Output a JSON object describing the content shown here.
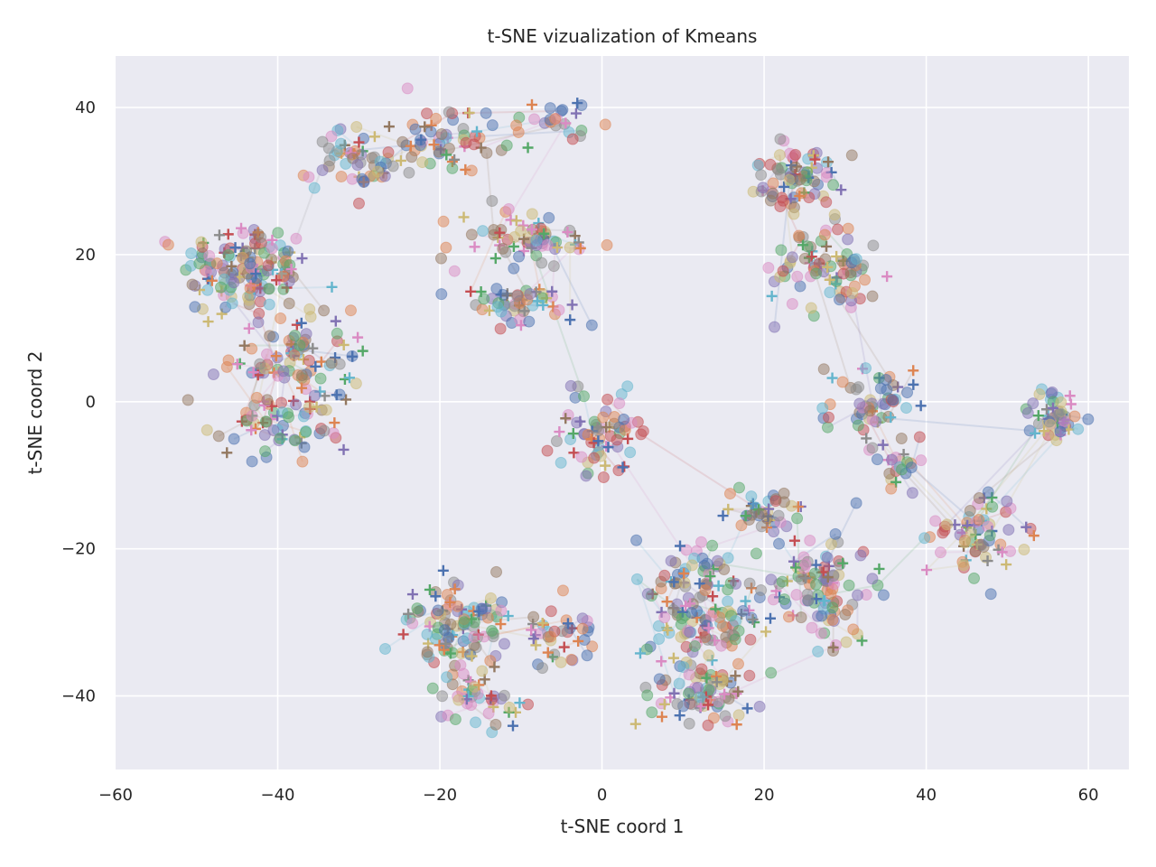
{
  "chart_data": {
    "type": "scatter",
    "title": "t-SNE vizualization of Kmeans",
    "xlabel": "t-SNE coord 1",
    "ylabel": "t-SNE coord 2",
    "xlim": [
      -60,
      65
    ],
    "ylim": [
      -50,
      47
    ],
    "xticks": [
      "−60",
      "−40",
      "−20",
      "0",
      "20",
      "40",
      "60"
    ],
    "yticks": [
      "−40",
      "−20",
      "0",
      "20",
      "40"
    ],
    "grid": true,
    "style": "seaborn darkgrid",
    "markers": [
      "circle (alpha 0.5)",
      "plus"
    ],
    "colors": [
      "#4c72b0",
      "#dd8452",
      "#55a868",
      "#c44e52",
      "#8172b3",
      "#937860",
      "#da8bc3",
      "#8c8c8c",
      "#ccb974",
      "#64b5cd"
    ],
    "clusters": [
      {
        "center": [
          -44,
          18
        ],
        "spread": [
          7,
          6
        ],
        "n": 150
      },
      {
        "center": [
          -37,
          6
        ],
        "spread": [
          8,
          5
        ],
        "n": 90
      },
      {
        "center": [
          -40,
          -3
        ],
        "spread": [
          7,
          4
        ],
        "n": 70
      },
      {
        "center": [
          -30,
          33
        ],
        "spread": [
          6,
          4
        ],
        "n": 60
      },
      {
        "center": [
          -19,
          36
        ],
        "spread": [
          6,
          4
        ],
        "n": 55
      },
      {
        "center": [
          -6,
          38
        ],
        "spread": [
          4,
          3
        ],
        "n": 25
      },
      {
        "center": [
          -9,
          22
        ],
        "spread": [
          8,
          4
        ],
        "n": 70
      },
      {
        "center": [
          -10,
          13
        ],
        "spread": [
          7,
          3
        ],
        "n": 55
      },
      {
        "center": [
          0,
          -4
        ],
        "spread": [
          5,
          5
        ],
        "n": 70
      },
      {
        "center": [
          24,
          30
        ],
        "spread": [
          6,
          5
        ],
        "n": 80
      },
      {
        "center": [
          28,
          18
        ],
        "spread": [
          6,
          6
        ],
        "n": 80
      },
      {
        "center": [
          33,
          0
        ],
        "spread": [
          5,
          5
        ],
        "n": 55
      },
      {
        "center": [
          37,
          -8
        ],
        "spread": [
          3,
          3
        ],
        "n": 25
      },
      {
        "center": [
          56,
          -2
        ],
        "spread": [
          3,
          3
        ],
        "n": 55
      },
      {
        "center": [
          46,
          -18
        ],
        "spread": [
          5,
          5
        ],
        "n": 70
      },
      {
        "center": [
          -18,
          -30
        ],
        "spread": [
          6,
          5
        ],
        "n": 110
      },
      {
        "center": [
          -15,
          -40
        ],
        "spread": [
          5,
          3
        ],
        "n": 50
      },
      {
        "center": [
          -5,
          -32
        ],
        "spread": [
          4,
          4
        ],
        "n": 40
      },
      {
        "center": [
          12,
          -27
        ],
        "spread": [
          7,
          8
        ],
        "n": 150
      },
      {
        "center": [
          13,
          -40
        ],
        "spread": [
          6,
          4
        ],
        "n": 80
      },
      {
        "center": [
          27,
          -25
        ],
        "spread": [
          6,
          7
        ],
        "n": 110
      },
      {
        "center": [
          20,
          -15
        ],
        "spread": [
          5,
          3
        ],
        "n": 40
      }
    ]
  }
}
